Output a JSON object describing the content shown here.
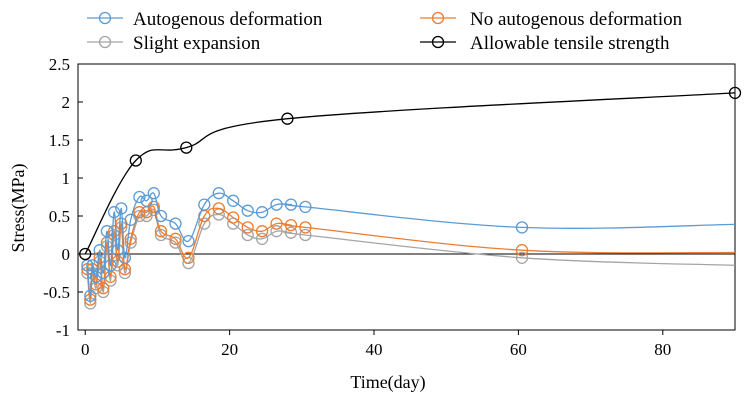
{
  "chart_data": {
    "type": "line",
    "title": "",
    "xlabel": "Time(day)",
    "ylabel": "Stress(MPa)",
    "xlim": [
      -1,
      90
    ],
    "ylim": [
      -1,
      2.5
    ],
    "xticks": [
      0,
      20,
      40,
      60,
      80
    ],
    "yticks": [
      -1,
      -0.5,
      0,
      0.5,
      1,
      1.5,
      2,
      2.5
    ],
    "xtick_labels": [
      "0",
      "20",
      "40",
      "60",
      "80"
    ],
    "ytick_labels": [
      "-1",
      "-0.5",
      "0",
      "0.5",
      "1",
      "1.5",
      "2",
      "2.5"
    ],
    "grid": false,
    "legend_position": "top",
    "series": [
      {
        "name": "Autogenous deformation",
        "color": "#5B9BD5",
        "x": [
          0.3,
          0.7,
          1.0,
          1.5,
          2.0,
          2.5,
          3.0,
          3.5,
          4.0,
          4.5,
          5.0,
          5.5,
          6.3,
          7.5,
          8.5,
          9.5,
          10.5,
          12.5,
          14.3,
          16.5,
          18.5,
          20.5,
          22.5,
          24.5,
          26.5,
          28.5,
          30.5,
          60.5,
          90
        ],
        "y": [
          -0.15,
          -0.55,
          -0.15,
          -0.3,
          0.05,
          -0.25,
          0.3,
          -0.15,
          0.55,
          0.05,
          0.6,
          -0.05,
          0.45,
          0.75,
          0.7,
          0.8,
          0.5,
          0.4,
          0.17,
          0.65,
          0.8,
          0.7,
          0.57,
          0.55,
          0.65,
          0.65,
          0.62,
          0.35,
          0.39
        ]
      },
      {
        "name": "No autogenous deformation",
        "color": "#ED7D31",
        "x": [
          0.3,
          0.7,
          1.0,
          1.5,
          2.0,
          2.5,
          3.0,
          3.5,
          4.0,
          4.5,
          5.0,
          5.5,
          6.3,
          7.5,
          8.5,
          9.5,
          10.5,
          12.5,
          14.3,
          16.5,
          18.5,
          20.5,
          22.5,
          24.5,
          26.5,
          28.5,
          30.5,
          60.5,
          90
        ],
        "y": [
          -0.2,
          -0.6,
          -0.2,
          -0.4,
          -0.05,
          -0.45,
          0.15,
          -0.3,
          0.3,
          -0.1,
          0.4,
          -0.2,
          0.2,
          0.55,
          0.55,
          0.62,
          0.3,
          0.2,
          -0.05,
          0.5,
          0.6,
          0.48,
          0.35,
          0.3,
          0.4,
          0.38,
          0.35,
          0.05,
          0.02
        ]
      },
      {
        "name": "Slight expansion",
        "color": "#A5A5A5",
        "x": [
          0.3,
          0.7,
          1.0,
          1.5,
          2.0,
          2.5,
          3.0,
          3.5,
          4.0,
          4.5,
          5.0,
          5.5,
          6.3,
          7.5,
          8.5,
          9.5,
          10.5,
          12.5,
          14.3,
          16.5,
          18.5,
          20.5,
          22.5,
          24.5,
          26.5,
          28.5,
          30.5,
          60.5,
          90
        ],
        "y": [
          -0.25,
          -0.65,
          -0.25,
          -0.45,
          -0.1,
          -0.5,
          0.1,
          -0.35,
          0.25,
          -0.15,
          0.35,
          -0.25,
          0.15,
          0.5,
          0.5,
          0.58,
          0.25,
          0.15,
          -0.12,
          0.4,
          0.52,
          0.4,
          0.25,
          0.2,
          0.3,
          0.28,
          0.25,
          -0.05,
          -0.15
        ]
      },
      {
        "name": "Allowable tensile strength",
        "color": "#000000",
        "x": [
          0,
          7,
          14,
          28,
          90
        ],
        "y": [
          0,
          1.23,
          1.4,
          1.78,
          2.12
        ]
      }
    ]
  }
}
